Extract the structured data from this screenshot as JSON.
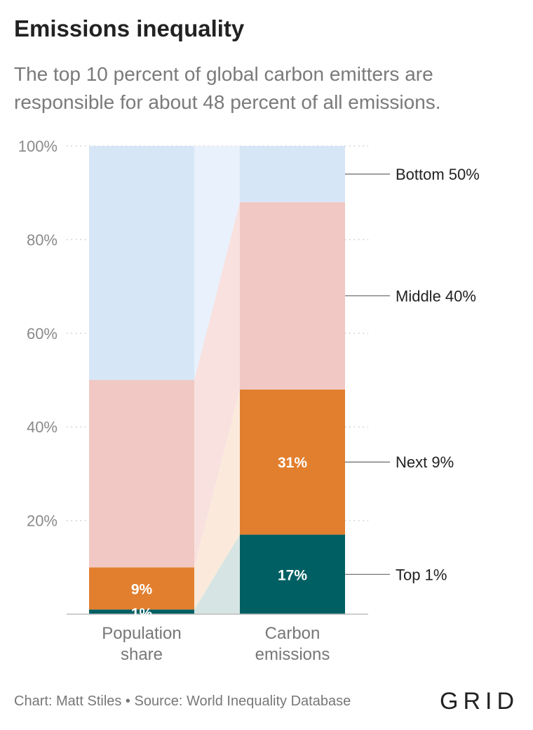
{
  "title": "Emissions inequality",
  "subtitle": "The top 10 percent of global carbon emitters are responsible for about 48 percent of all emissions.",
  "footer": "Chart: Matt Stiles • Source: World Inequality Database",
  "logo": "GRID",
  "chart_data": {
    "type": "bar",
    "stacked": true,
    "categories": [
      "Population share",
      "Carbon emissions"
    ],
    "category_labels": [
      [
        "Population",
        "share"
      ],
      [
        "Carbon",
        "emissions"
      ]
    ],
    "ylim": [
      0,
      100
    ],
    "yticks": [
      20,
      40,
      60,
      80,
      100
    ],
    "ytick_labels": [
      "20%",
      "40%",
      "60%",
      "80%",
      "100%"
    ],
    "grid": true,
    "series": [
      {
        "name": "Top 1%",
        "values": [
          1,
          17
        ],
        "labels": [
          "1%",
          "17%"
        ],
        "color": "#005f63"
      },
      {
        "name": "Next 9%",
        "values": [
          9,
          31
        ],
        "labels": [
          "9%",
          "31%"
        ],
        "color": "#e27f2e"
      },
      {
        "name": "Middle 40%",
        "values": [
          40,
          40
        ],
        "labels": [
          "",
          ""
        ],
        "color": "#f1c8c3"
      },
      {
        "name": "Bottom 50%",
        "values": [
          50,
          12
        ],
        "labels": [
          "",
          ""
        ],
        "color": "#d6e6f7"
      }
    ],
    "connector_colors": [
      "#d6e5e3",
      "#fbeadb",
      "#f8e1df",
      "#e8f1fc"
    ]
  }
}
